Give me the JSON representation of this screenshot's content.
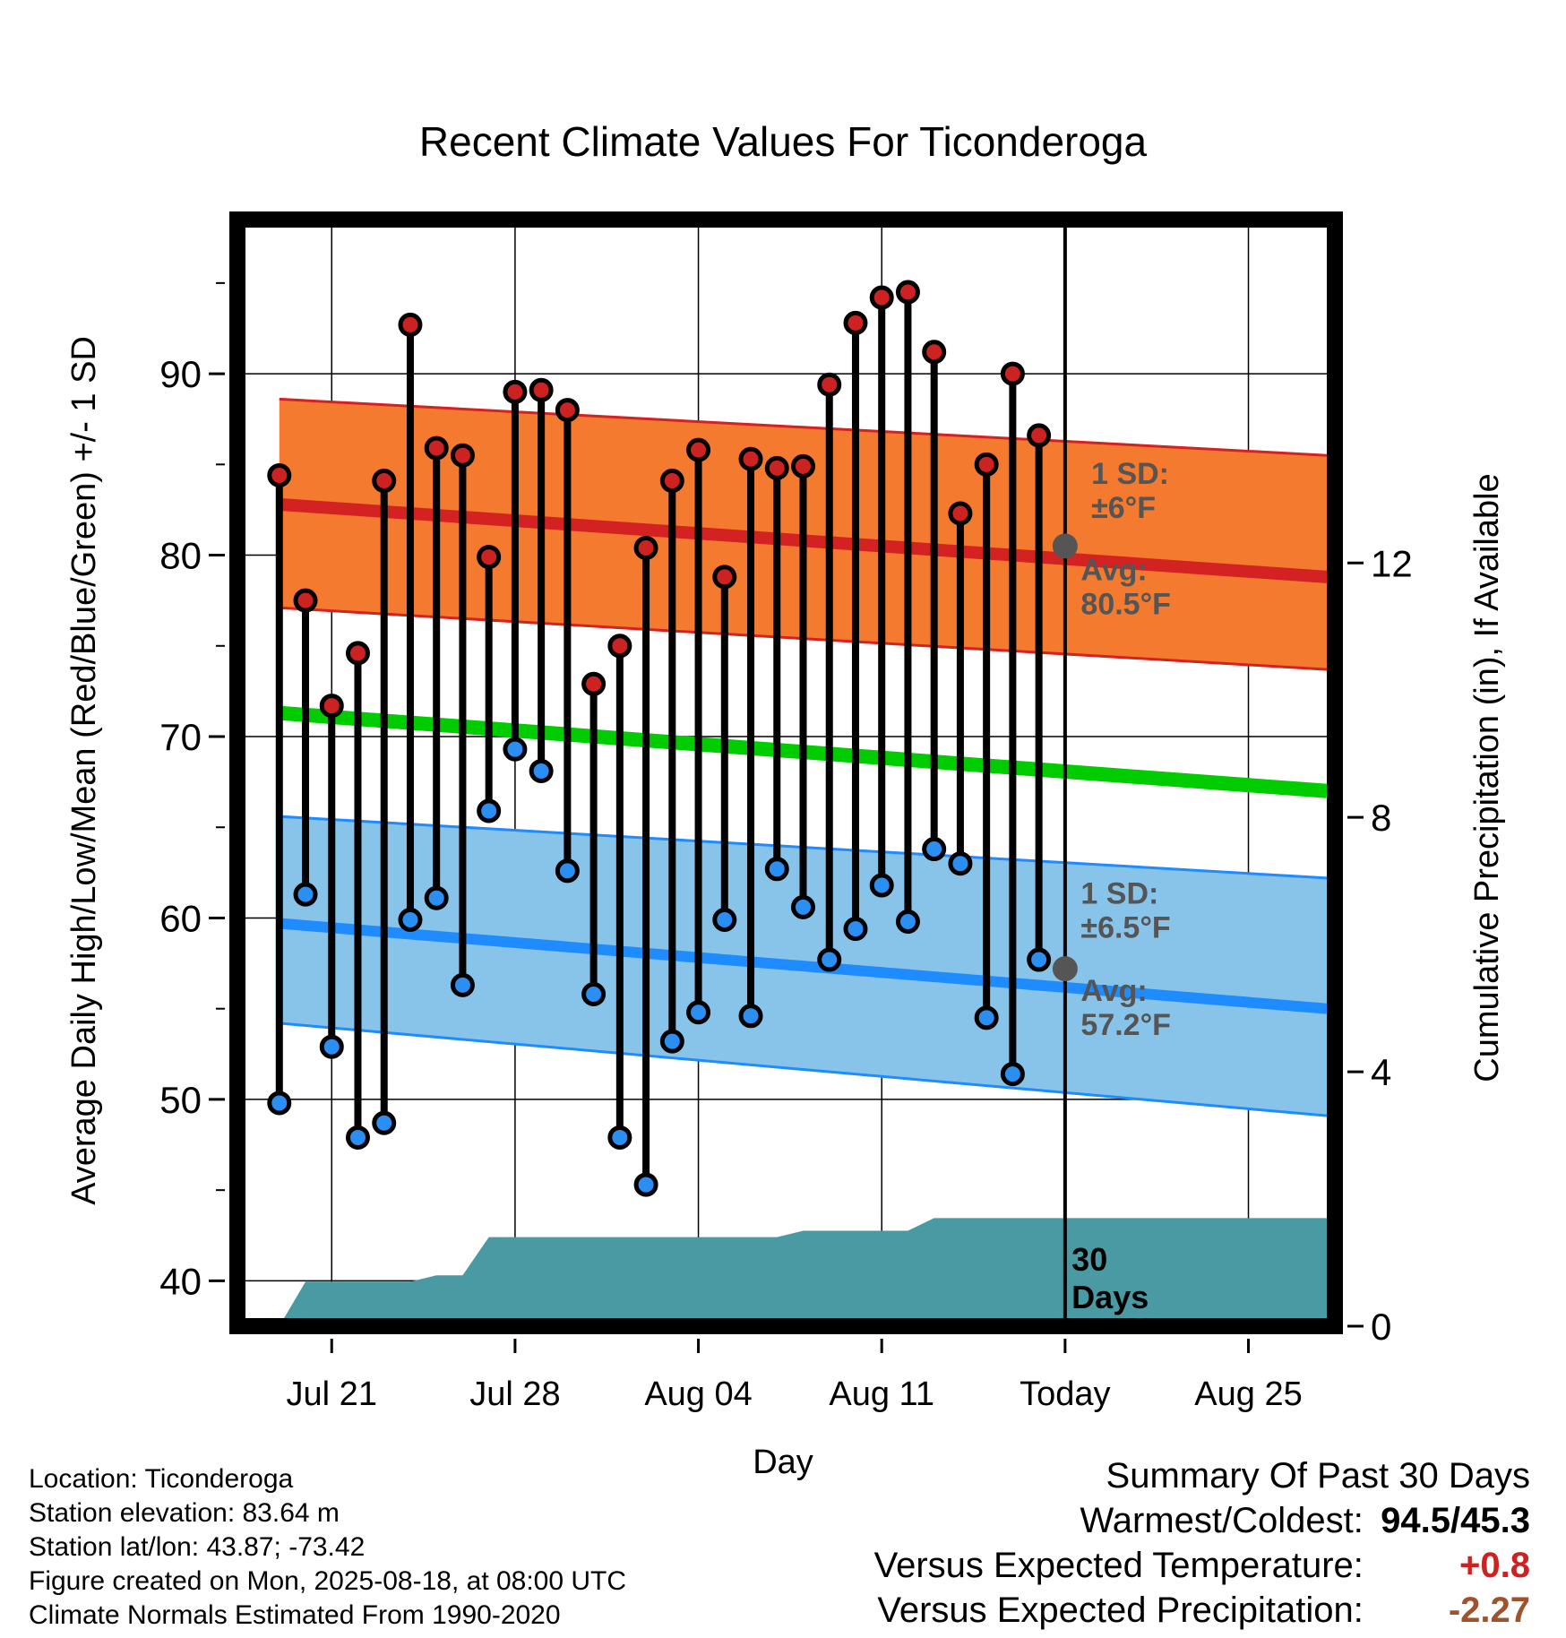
{
  "chart_data": {
    "type": "line",
    "title": "Recent Climate Values For Ticonderoga",
    "xlabel": "Day",
    "ylabel": "Average Daily High/Low/Mean (Red/Blue/Green) +/- 1 SD",
    "y2label": "Cumulative Precipitation (in), If Available",
    "ylim": [
      37.5,
      98.5
    ],
    "y2lim": [
      0,
      17.4
    ],
    "xlim": [
      -3.6,
      38.3
    ],
    "yticks": [
      40,
      50,
      60,
      70,
      80,
      90
    ],
    "y2ticks": [
      0,
      4,
      8,
      12
    ],
    "x_ticks": [
      {
        "day": 0,
        "label": "Jul 21"
      },
      {
        "day": 7,
        "label": "Jul 28"
      },
      {
        "day": 14,
        "label": "Aug 04"
      },
      {
        "day": 21,
        "label": "Aug 11"
      },
      {
        "day": 28,
        "label": "Today"
      },
      {
        "day": 35,
        "label": "Aug 25"
      }
    ],
    "grid": true,
    "days": [
      -2,
      -1,
      0,
      1,
      2,
      3,
      4,
      5,
      6,
      7,
      8,
      9,
      10,
      11,
      12,
      13,
      14,
      15,
      16,
      17,
      18,
      19,
      20,
      21,
      22,
      23,
      24,
      25,
      26,
      27
    ],
    "daily_high": [
      84.4,
      77.5,
      71.7,
      74.6,
      84.1,
      92.7,
      85.9,
      85.5,
      79.9,
      89.0,
      89.1,
      88.0,
      72.9,
      75.0,
      80.4,
      84.1,
      85.8,
      78.8,
      85.3,
      84.8,
      84.9,
      89.4,
      92.8,
      94.2,
      94.5,
      91.2,
      82.3,
      85.0,
      90.0,
      86.6
    ],
    "daily_low": [
      49.8,
      61.3,
      52.9,
      47.9,
      48.7,
      59.9,
      61.1,
      56.3,
      65.9,
      69.3,
      68.1,
      62.6,
      55.8,
      47.9,
      45.3,
      53.2,
      54.8,
      59.9,
      54.6,
      62.7,
      60.6,
      57.7,
      59.4,
      61.8,
      59.8,
      63.8,
      63.0,
      54.5,
      51.4,
      57.7
    ],
    "normal_days": [
      -2,
      38
    ],
    "normal_high": [
      82.8,
      78.8
    ],
    "normal_high_upper": [
      88.6,
      85.5
    ],
    "normal_high_lower": [
      77.1,
      73.7
    ],
    "normal_mean": [
      71.3,
      67.0
    ],
    "normal_low": [
      59.7,
      55.0
    ],
    "normal_low_upper": [
      65.6,
      62.2
    ],
    "normal_low_lower": [
      54.2,
      49.1
    ],
    "precip_days": [
      -2,
      -1,
      0,
      1,
      2,
      3,
      4,
      5,
      6,
      7,
      8,
      9,
      10,
      11,
      12,
      13,
      14,
      15,
      16,
      17,
      18,
      19,
      20,
      21,
      22,
      23,
      24,
      25,
      26,
      27,
      28,
      38
    ],
    "cumulative_precip": [
      0,
      0.7,
      0.7,
      0.7,
      0.7,
      0.7,
      0.8,
      0.8,
      1.4,
      1.4,
      1.4,
      1.4,
      1.4,
      1.4,
      1.4,
      1.4,
      1.4,
      1.4,
      1.4,
      1.4,
      1.5,
      1.5,
      1.5,
      1.5,
      1.5,
      1.7,
      1.7,
      1.7,
      1.7,
      1.7,
      1.7,
      1.7
    ],
    "annotations": {
      "high_sd": "1 SD:",
      "high_sd_value": "±6°F",
      "high_avg": "Avg:",
      "high_avg_value": "80.5°F",
      "low_sd": "1 SD:",
      "low_sd_value": "±6.5°F",
      "low_avg": "Avg:",
      "low_avg_value": "57.2°F",
      "today_high_avg": 80.5,
      "today_low_avg": 57.2,
      "days_count": "30",
      "days_word": "Days"
    },
    "colors": {
      "high_band": "#f47a2f",
      "high_line": "#d42222",
      "mean_line": "#00cc00",
      "low_band": "#88c4ea",
      "low_line": "#1e8bff",
      "precip": "#4a9aa4",
      "high_dot": "#cc2222",
      "low_dot": "#2a8ef2",
      "annotation": "#555555"
    }
  },
  "info": {
    "location": "Location: Ticonderoga",
    "elevation": "Station elevation: 83.64 m",
    "latlon": "Station lat/lon: 43.87; -73.42",
    "created": "Figure created on Mon, 2025-08-18, at 08:00 UTC",
    "normals": "Climate Normals Estimated From 1990-2020"
  },
  "summary": {
    "title": "Summary Of Past 30 Days",
    "warm_cold_label": "Warmest/Coldest:",
    "warm_cold_value": "94.5/45.3",
    "temp_label": "Versus Expected Temperature:",
    "temp_value": "+0.8",
    "temp_color": "#cc2222",
    "precip_label": "Versus Expected Precipitation:",
    "precip_value": "-2.27",
    "precip_color": "#a0522d"
  }
}
